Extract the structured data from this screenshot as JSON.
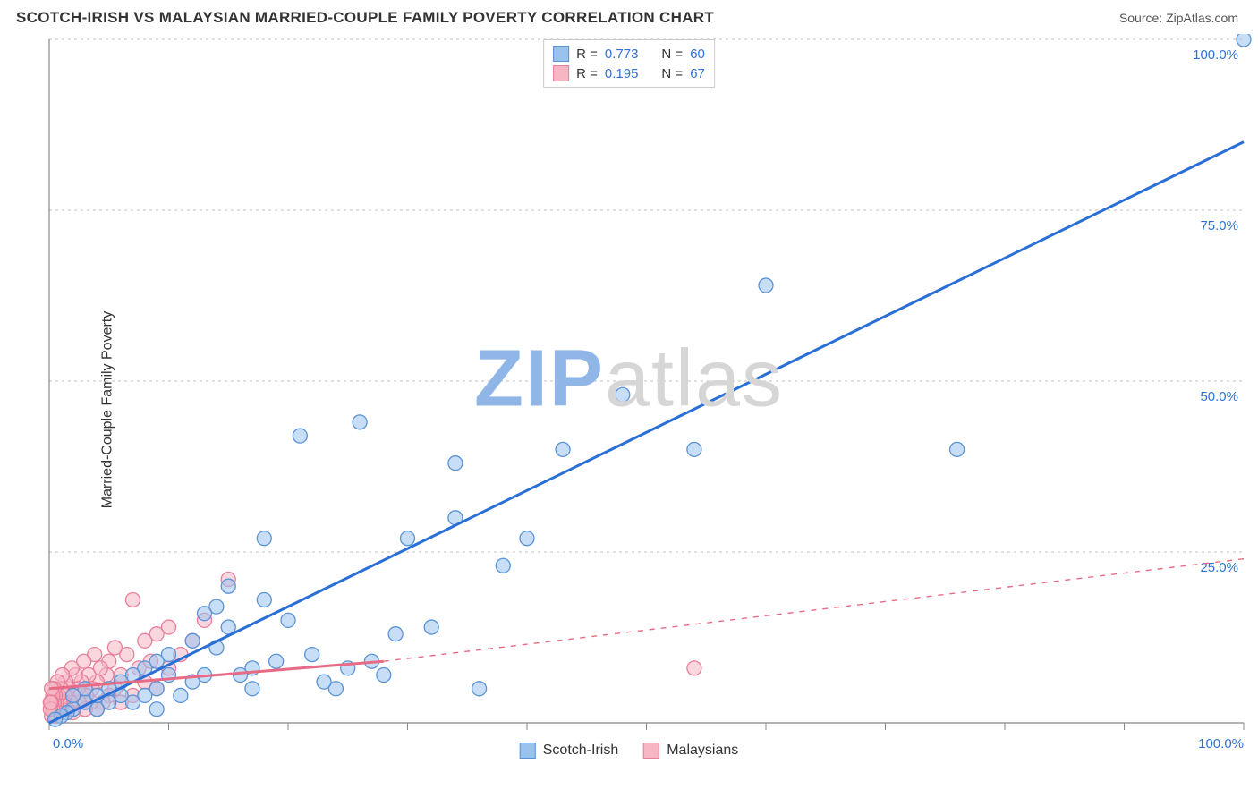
{
  "title": "SCOTCH-IRISH VS MALAYSIAN MARRIED-COUPLE FAMILY POVERTY CORRELATION CHART",
  "source_label": "Source: ZipAtlas.com",
  "watermark": {
    "prefix": "ZIP",
    "suffix": "atlas"
  },
  "y_axis_label": "Married-Couple Family Poverty",
  "chart": {
    "type": "scatter",
    "xlim": [
      0,
      100
    ],
    "ylim": [
      0,
      100
    ],
    "x_ticks": [
      0,
      10,
      20,
      30,
      40,
      50,
      60,
      70,
      80,
      90,
      100
    ],
    "y_grid": [
      25,
      50,
      75,
      100
    ],
    "x_tick_labels": {
      "0": "0.0%",
      "100": "100.0%"
    },
    "y_tick_labels": {
      "25": "25.0%",
      "50": "50.0%",
      "75": "75.0%",
      "100": "100.0%"
    },
    "background_color": "#ffffff",
    "grid_color": "#bfbfbf",
    "axis_color": "#888888",
    "tick_label_color": "#2f72d4",
    "marker_radius": 8,
    "marker_stroke_width": 1.3,
    "trend_line_width_solid": 3,
    "trend_line_width_dash": 1.4,
    "series": [
      {
        "key": "scotch_irish",
        "label": "Scotch-Irish",
        "R": "0.773",
        "N": "60",
        "color_fill": "#99c2ee",
        "color_stroke": "#5a93d6",
        "trend_color": "#2a6fd6",
        "trend": {
          "x1": 0,
          "y1": 0,
          "x2": 100,
          "y2": 85,
          "dash": false,
          "extend_dash": false
        },
        "points": [
          [
            100,
            100
          ],
          [
            76,
            40
          ],
          [
            60,
            64
          ],
          [
            54,
            40
          ],
          [
            48,
            48
          ],
          [
            38,
            23
          ],
          [
            43,
            40
          ],
          [
            40,
            27
          ],
          [
            34,
            38
          ],
          [
            36,
            5
          ],
          [
            34,
            30
          ],
          [
            32,
            14
          ],
          [
            30,
            27
          ],
          [
            29,
            13
          ],
          [
            27,
            9
          ],
          [
            26,
            44
          ],
          [
            24,
            5
          ],
          [
            23,
            6
          ],
          [
            22,
            10
          ],
          [
            21,
            42
          ],
          [
            20,
            15
          ],
          [
            18,
            18
          ],
          [
            18,
            27
          ],
          [
            17,
            8
          ],
          [
            16,
            7
          ],
          [
            15,
            20
          ],
          [
            15,
            14
          ],
          [
            14,
            11
          ],
          [
            14,
            17
          ],
          [
            13,
            7
          ],
          [
            12,
            6
          ],
          [
            12,
            12
          ],
          [
            11,
            4
          ],
          [
            10,
            10
          ],
          [
            10,
            7
          ],
          [
            9,
            5
          ],
          [
            9,
            9
          ],
          [
            8,
            4
          ],
          [
            8,
            8
          ],
          [
            7,
            3
          ],
          [
            7,
            7
          ],
          [
            6,
            4
          ],
          [
            6,
            6
          ],
          [
            5,
            3
          ],
          [
            5,
            5
          ],
          [
            4,
            2
          ],
          [
            4,
            4
          ],
          [
            3,
            3
          ],
          [
            3,
            5
          ],
          [
            2,
            2
          ],
          [
            2,
            4
          ],
          [
            1.5,
            1.5
          ],
          [
            1,
            1
          ],
          [
            0.5,
            0.5
          ],
          [
            13,
            16
          ],
          [
            17,
            5
          ],
          [
            19,
            9
          ],
          [
            25,
            8
          ],
          [
            28,
            7
          ],
          [
            9,
            2
          ]
        ]
      },
      {
        "key": "malaysians",
        "label": "Malaysians",
        "R": "0.195",
        "N": "67",
        "color_fill": "#f6b6c4",
        "color_stroke": "#e87f99",
        "trend_color": "#e86b86",
        "trend": {
          "x1": 0,
          "y1": 5,
          "x2": 28,
          "y2": 9,
          "dash": false,
          "extend_dash": true,
          "ext_x2": 100,
          "ext_y2": 24
        },
        "points": [
          [
            54,
            8
          ],
          [
            15,
            21
          ],
          [
            13,
            15
          ],
          [
            12,
            12
          ],
          [
            11,
            10
          ],
          [
            10,
            14
          ],
          [
            10,
            8
          ],
          [
            9,
            13
          ],
          [
            9,
            5
          ],
          [
            8.5,
            9
          ],
          [
            8,
            12
          ],
          [
            8,
            6
          ],
          [
            7.5,
            8
          ],
          [
            7,
            18
          ],
          [
            7,
            4
          ],
          [
            6.5,
            10
          ],
          [
            6,
            7
          ],
          [
            6,
            3
          ],
          [
            5.5,
            11
          ],
          [
            5.5,
            5
          ],
          [
            5,
            9
          ],
          [
            5,
            4
          ],
          [
            4.8,
            7
          ],
          [
            4.5,
            3
          ],
          [
            4.3,
            8
          ],
          [
            4,
            6
          ],
          [
            4,
            2
          ],
          [
            3.8,
            10
          ],
          [
            3.6,
            5
          ],
          [
            3.5,
            3
          ],
          [
            3.3,
            7
          ],
          [
            3.1,
            4
          ],
          [
            3,
            2
          ],
          [
            2.9,
            9
          ],
          [
            2.7,
            6
          ],
          [
            2.5,
            3
          ],
          [
            2.4,
            5
          ],
          [
            2.2,
            7
          ],
          [
            2,
            4
          ],
          [
            2,
            1.5
          ],
          [
            1.9,
            8
          ],
          [
            1.8,
            3
          ],
          [
            1.6,
            5
          ],
          [
            1.5,
            2
          ],
          [
            1.4,
            6
          ],
          [
            1.3,
            4
          ],
          [
            1.2,
            3
          ],
          [
            1.1,
            7
          ],
          [
            1,
            2
          ],
          [
            1,
            5
          ],
          [
            0.9,
            3
          ],
          [
            0.8,
            4
          ],
          [
            0.7,
            2
          ],
          [
            0.7,
            6
          ],
          [
            0.6,
            3
          ],
          [
            0.6,
            1
          ],
          [
            0.5,
            4
          ],
          [
            0.5,
            2
          ],
          [
            0.4,
            3
          ],
          [
            0.4,
            5
          ],
          [
            0.3,
            2
          ],
          [
            0.3,
            4
          ],
          [
            0.2,
            3
          ],
          [
            0.2,
            1
          ],
          [
            0.2,
            5
          ],
          [
            0.1,
            2
          ],
          [
            0.1,
            3
          ]
        ]
      }
    ]
  },
  "top_legend_labels": {
    "R_prefix": "R =",
    "N_prefix": "N ="
  }
}
